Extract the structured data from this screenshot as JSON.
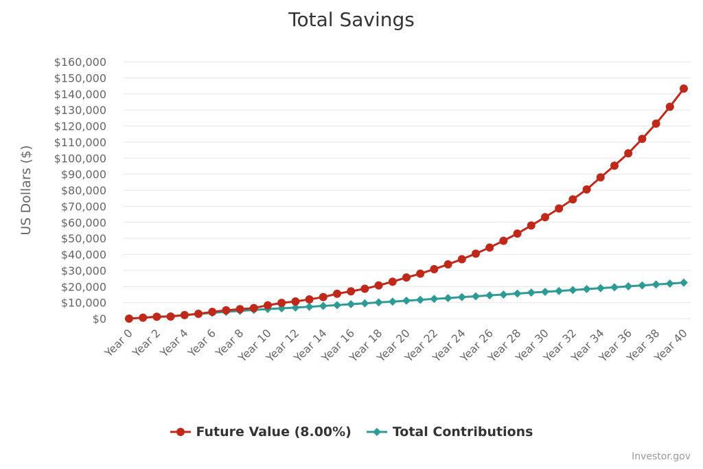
{
  "chart_data": {
    "type": "line",
    "title": "Total Savings",
    "ylabel": "US Dollars ($)",
    "ylim": [
      0,
      160000
    ],
    "ytick_step": 10000,
    "y_tick_labels": [
      "$0",
      "$10,000",
      "$20,000",
      "$30,000",
      "$40,000",
      "$50,000",
      "$60,000",
      "$70,000",
      "$80,000",
      "$90,000",
      "$100,000",
      "$110,000",
      "$120,000",
      "$130,000",
      "$140,000",
      "$150,000",
      "$160,000"
    ],
    "categories": [
      "Year 0",
      "Year 1",
      "Year 2",
      "Year 3",
      "Year 4",
      "Year 5",
      "Year 6",
      "Year 7",
      "Year 8",
      "Year 9",
      "Year 10",
      "Year 11",
      "Year 12",
      "Year 13",
      "Year 14",
      "Year 15",
      "Year 16",
      "Year 17",
      "Year 18",
      "Year 19",
      "Year 20",
      "Year 21",
      "Year 22",
      "Year 23",
      "Year 24",
      "Year 25",
      "Year 26",
      "Year 27",
      "Year 28",
      "Year 29",
      "Year 30",
      "Year 31",
      "Year 32",
      "Year 33",
      "Year 34",
      "Year 35",
      "Year 36",
      "Year 37",
      "Year 38",
      "Year 39",
      "Year 40"
    ],
    "x_tick_labels": [
      "Year 0",
      "Year 2",
      "Year 4",
      "Year 6",
      "Year 8",
      "Year 10",
      "Year 12",
      "Year 14",
      "Year 16",
      "Year 18",
      "Year 20",
      "Year 22",
      "Year 24",
      "Year 26",
      "Year 28",
      "Year 30",
      "Year 32",
      "Year 34",
      "Year 36",
      "Year 38",
      "Year 40"
    ],
    "legend_position": "bottom-center",
    "grid": true,
    "series": [
      {
        "name": "Future Value (8.00%)",
        "color": "#c0281a",
        "marker": "circle",
        "values": [
          0,
          600,
          1200,
          1300,
          2200,
          3000,
          4200,
          5200,
          5900,
          6600,
          8300,
          9800,
          10700,
          12000,
          13400,
          15500,
          17000,
          18600,
          20700,
          23000,
          25600,
          28000,
          30800,
          33800,
          37000,
          40500,
          44300,
          48500,
          53000,
          58000,
          63200,
          68600,
          74300,
          80500,
          88000,
          95300,
          103000,
          112000,
          121500,
          132000,
          143300
        ]
      },
      {
        "name": "Total Contributions",
        "color": "#2e9a96",
        "marker": "diamond",
        "values": [
          0,
          600,
          1100,
          1500,
          2200,
          2900,
          3600,
          4200,
          4800,
          5400,
          6000,
          6400,
          6900,
          7400,
          7900,
          8400,
          9000,
          9500,
          10100,
          10600,
          11200,
          11700,
          12300,
          12800,
          13400,
          13900,
          14500,
          15000,
          15600,
          16200,
          16700,
          17200,
          17800,
          18400,
          19000,
          19500,
          20100,
          20700,
          21300,
          21800,
          22400
        ]
      }
    ]
  },
  "credit": "Investor.gov"
}
